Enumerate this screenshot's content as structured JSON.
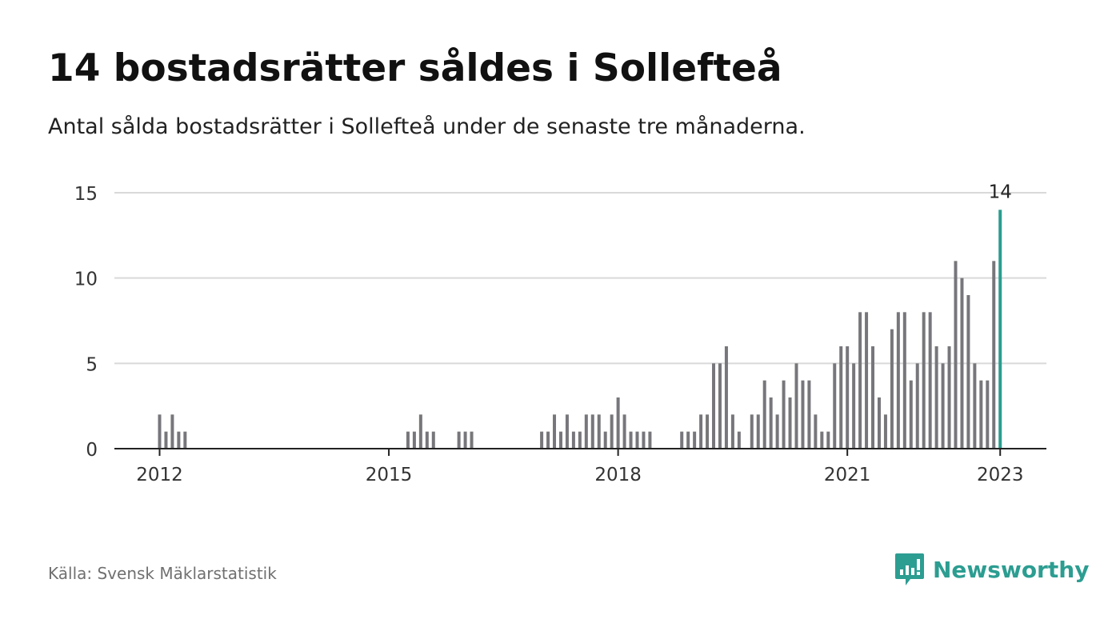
{
  "header": {
    "title": "14 bostadsrätter såldes i Sollefteå",
    "subtitle": "Antal sålda bostadsrätter i Sollefteå under de senaste tre månaderna."
  },
  "footer": {
    "source": "Källa: Svensk Mäklarstatistik",
    "brand": "Newsworthy"
  },
  "colors": {
    "bar": "#77777b",
    "highlight": "#2a9d8f",
    "grid": "#d9d9d9",
    "axis": "#222222",
    "brand": "#2c9d91"
  },
  "chart_data": {
    "type": "bar",
    "x_start": "2012-01",
    "interval": "month",
    "ylim": [
      0,
      15
    ],
    "yticks": [
      0,
      5,
      10,
      15
    ],
    "xticks": [
      "2012",
      "2015",
      "2018",
      "2021",
      "2023"
    ],
    "grid": true,
    "highlight_label": "14",
    "values": [
      2,
      1,
      2,
      1,
      1,
      0,
      0,
      0,
      0,
      0,
      0,
      0,
      0,
      0,
      0,
      0,
      0,
      0,
      0,
      0,
      0,
      0,
      0,
      0,
      0,
      0,
      0,
      0,
      0,
      0,
      0,
      0,
      0,
      0,
      0,
      0,
      0,
      0,
      0,
      1,
      1,
      2,
      1,
      1,
      0,
      0,
      0,
      1,
      1,
      1,
      0,
      0,
      0,
      0,
      0,
      0,
      0,
      0,
      0,
      0,
      1,
      1,
      2,
      1,
      2,
      1,
      1,
      2,
      2,
      2,
      1,
      2,
      3,
      2,
      1,
      1,
      1,
      1,
      0,
      0,
      0,
      0,
      1,
      1,
      1,
      2,
      2,
      5,
      5,
      6,
      2,
      1,
      0,
      2,
      2,
      4,
      3,
      2,
      4,
      3,
      5,
      4,
      4,
      2,
      1,
      1,
      5,
      6,
      6,
      5,
      8,
      8,
      6,
      3,
      2,
      7,
      8,
      8,
      4,
      5,
      8,
      8,
      6,
      5,
      6,
      11,
      10,
      9,
      5,
      4,
      4,
      11,
      14
    ]
  }
}
